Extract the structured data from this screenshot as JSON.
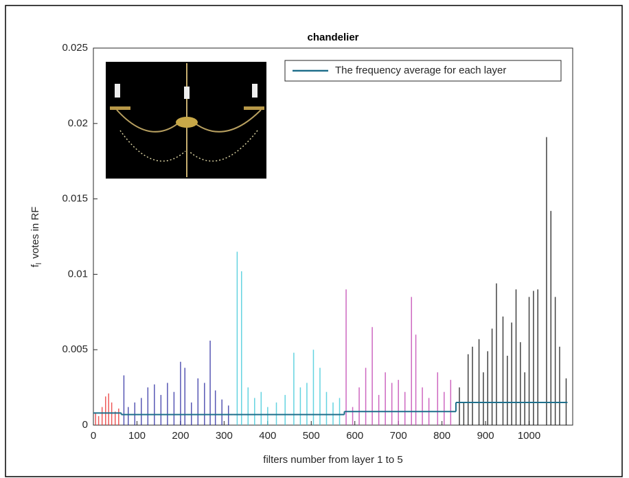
{
  "chart_data": {
    "type": "bar",
    "title": "chandelier",
    "xlabel": "filters number from layer 1 to 5",
    "ylabel": [
      "f",
      "l",
      "votes in RF"
    ],
    "xlim": [
      0,
      1100
    ],
    "ylim": [
      0,
      0.025
    ],
    "xticks": [
      0,
      100,
      200,
      300,
      400,
      500,
      600,
      700,
      800,
      900,
      1000
    ],
    "yticks": [
      0,
      0.005,
      0.01,
      0.015,
      0.02,
      0.025
    ],
    "series": [
      {
        "color": "#e8312f",
        "x": [
          5,
          12,
          20,
          28,
          35,
          42,
          50,
          58
        ],
        "values": [
          0.0008,
          0.0006,
          0.0012,
          0.0019,
          0.0021,
          0.0015,
          0.0009,
          0.0011
        ]
      },
      {
        "color": "#2a2aa0",
        "x": [
          70,
          80,
          95,
          110,
          125,
          140,
          155,
          170,
          185,
          200,
          210,
          225,
          240,
          255,
          268,
          280,
          295,
          310
        ],
        "values": [
          0.0033,
          0.0012,
          0.0015,
          0.0018,
          0.0025,
          0.0027,
          0.002,
          0.0028,
          0.0022,
          0.0042,
          0.0038,
          0.0015,
          0.0031,
          0.0028,
          0.0056,
          0.0023,
          0.0017,
          0.0013
        ]
      },
      {
        "color": "#3cc8d8",
        "x": [
          330,
          340,
          355,
          370,
          385,
          400,
          420,
          440,
          460,
          475,
          490,
          505,
          520,
          535,
          550,
          565
        ],
        "values": [
          0.0115,
          0.0102,
          0.0025,
          0.0018,
          0.0022,
          0.0012,
          0.0015,
          0.002,
          0.0048,
          0.0025,
          0.0028,
          0.005,
          0.0038,
          0.0022,
          0.0015,
          0.0018
        ]
      },
      {
        "color": "#c040b0",
        "x": [
          580,
          595,
          610,
          625,
          640,
          655,
          670,
          685,
          700,
          715,
          730,
          740,
          755,
          770,
          790,
          805,
          820
        ],
        "values": [
          0.009,
          0.0012,
          0.0025,
          0.0038,
          0.0065,
          0.002,
          0.0035,
          0.0028,
          0.003,
          0.0022,
          0.0085,
          0.006,
          0.0025,
          0.0018,
          0.0035,
          0.0022,
          0.003
        ]
      },
      {
        "color": "#111111",
        "x": [
          840,
          850,
          860,
          870,
          885,
          895,
          905,
          915,
          925,
          940,
          950,
          960,
          970,
          980,
          990,
          1000,
          1010,
          1020,
          1040,
          1050,
          1060,
          1070,
          1085
        ],
        "values": [
          0.0025,
          0.0015,
          0.0047,
          0.0052,
          0.0057,
          0.0035,
          0.0049,
          0.0064,
          0.0094,
          0.0072,
          0.0046,
          0.0068,
          0.009,
          0.0055,
          0.0035,
          0.0085,
          0.0089,
          0.009,
          0.0191,
          0.0142,
          0.0085,
          0.0052,
          0.0031
        ]
      }
    ],
    "average": {
      "name": "The frequency average for each layer",
      "color": "#1f6f8b",
      "layer_edges": [
        0,
        64,
        320,
        576,
        832,
        1088
      ],
      "values": [
        0.0008,
        0.0007,
        0.0007,
        0.0009,
        0.0015
      ]
    },
    "legend": "northeast"
  }
}
